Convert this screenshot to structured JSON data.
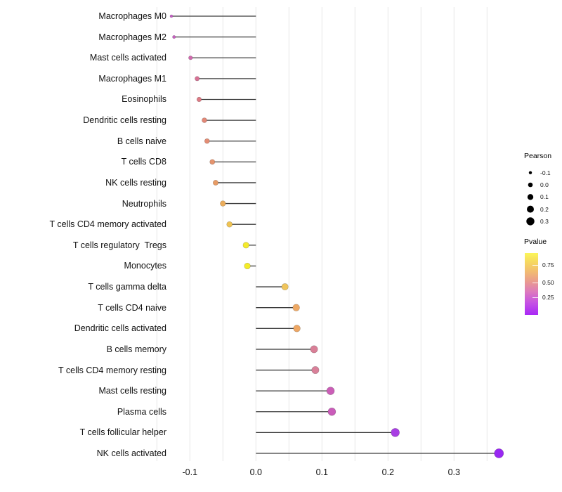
{
  "chart_data": {
    "type": "lollipop",
    "title": "",
    "xlabel": "",
    "ylabel": "",
    "x_axis": {
      "tick_labels": [
        "-0.1",
        "0.0",
        "0.1",
        "0.2",
        "0.3"
      ],
      "tick_values": [
        -0.1,
        0.0,
        0.1,
        0.2,
        0.3
      ],
      "gridline_values": [
        -0.15,
        -0.1,
        -0.05,
        0,
        0.05,
        0.1,
        0.15,
        0.2,
        0.25,
        0.3,
        0.35
      ],
      "range": [
        -0.153,
        0.393
      ]
    },
    "points": [
      {
        "label": "Macrophages M0",
        "pearson": -0.128,
        "color": "#C45FC4",
        "radius": 2.0
      },
      {
        "label": "Macrophages M2",
        "pearson": -0.124,
        "color": "#C75FC0",
        "radius": 2.2
      },
      {
        "label": "Mast cells activated",
        "pearson": -0.099,
        "color": "#D168AE",
        "radius": 2.8
      },
      {
        "label": "Macrophages M1",
        "pearson": -0.089,
        "color": "#D87295",
        "radius": 3.2
      },
      {
        "label": "Eosinophils",
        "pearson": -0.086,
        "color": "#DD7B85",
        "radius": 3.3
      },
      {
        "label": "Dendritic cells resting",
        "pearson": -0.078,
        "color": "#E28877",
        "radius": 3.5
      },
      {
        "label": "B cells naive",
        "pearson": -0.074,
        "color": "#E38D74",
        "radius": 3.5
      },
      {
        "label": "T cells CD8",
        "pearson": -0.066,
        "color": "#E5946E",
        "radius": 3.6
      },
      {
        "label": "NK cells resting",
        "pearson": -0.061,
        "color": "#E79C66",
        "radius": 3.7
      },
      {
        "label": "Neutrophils",
        "pearson": -0.05,
        "color": "#EBAD5C",
        "radius": 3.9
      },
      {
        "label": "T cells CD4 memory activated",
        "pearson": -0.04,
        "color": "#EFC353",
        "radius": 4.0
      },
      {
        "label": "T cells regulatory  Tregs",
        "pearson": -0.015,
        "color": "#F4EA2D",
        "radius": 4.3
      },
      {
        "label": "Monocytes",
        "pearson": -0.013,
        "color": "#F4EC28",
        "radius": 4.3
      },
      {
        "label": "T cells gamma delta",
        "pearson": 0.044,
        "color": "#EFC45B",
        "radius": 4.7
      },
      {
        "label": "T cells CD4 naive",
        "pearson": 0.061,
        "color": "#EEA965",
        "radius": 4.9
      },
      {
        "label": "Dendritic cells activated",
        "pearson": 0.062,
        "color": "#EEA764",
        "radius": 4.9
      },
      {
        "label": "B cells memory",
        "pearson": 0.088,
        "color": "#D97F97",
        "radius": 5.2
      },
      {
        "label": "T cells CD4 memory resting",
        "pearson": 0.09,
        "color": "#D98099",
        "radius": 5.2
      },
      {
        "label": "Mast cells resting",
        "pearson": 0.113,
        "color": "#CB5EB7",
        "radius": 5.5
      },
      {
        "label": "Plasma cells",
        "pearson": 0.115,
        "color": "#CA5CBA",
        "radius": 5.5
      },
      {
        "label": "T cells follicular helper",
        "pearson": 0.211,
        "color": "#A83EE3",
        "radius": 6.0
      },
      {
        "label": "NK cells activated",
        "pearson": 0.368,
        "color": "#9928F2",
        "radius": 6.6
      }
    ],
    "legend_size": {
      "title": "Pearson",
      "dot_color": "#000000",
      "items": [
        {
          "label": "-0.1",
          "radius": 2.2
        },
        {
          "label": "0.0",
          "radius": 3.3
        },
        {
          "label": "0.1",
          "radius": 4.2
        },
        {
          "label": "0.2",
          "radius": 5.0
        },
        {
          "label": "0.3",
          "radius": 5.7
        }
      ]
    },
    "legend_color": {
      "title": "Pvalue",
      "gradient": [
        {
          "color": "#FBF65A",
          "pos": 0
        },
        {
          "color": "#F7DD5E",
          "pos": 0.12
        },
        {
          "color": "#F2BC71",
          "pos": 0.3
        },
        {
          "color": "#E99991",
          "pos": 0.47
        },
        {
          "color": "#DD7BBC",
          "pos": 0.62
        },
        {
          "color": "#C653E3",
          "pos": 0.8
        },
        {
          "color": "#A928F6",
          "pos": 1
        }
      ],
      "ticks": [
        {
          "label": "0.75",
          "pos": 0.19
        },
        {
          "label": "0.50",
          "pos": 0.475
        },
        {
          "label": "0.25",
          "pos": 0.715
        }
      ]
    },
    "style": {
      "gridline_color": "#E8E8E8",
      "stem_color": "#3C3C3C",
      "panel_background": "#FFFFFF"
    }
  }
}
